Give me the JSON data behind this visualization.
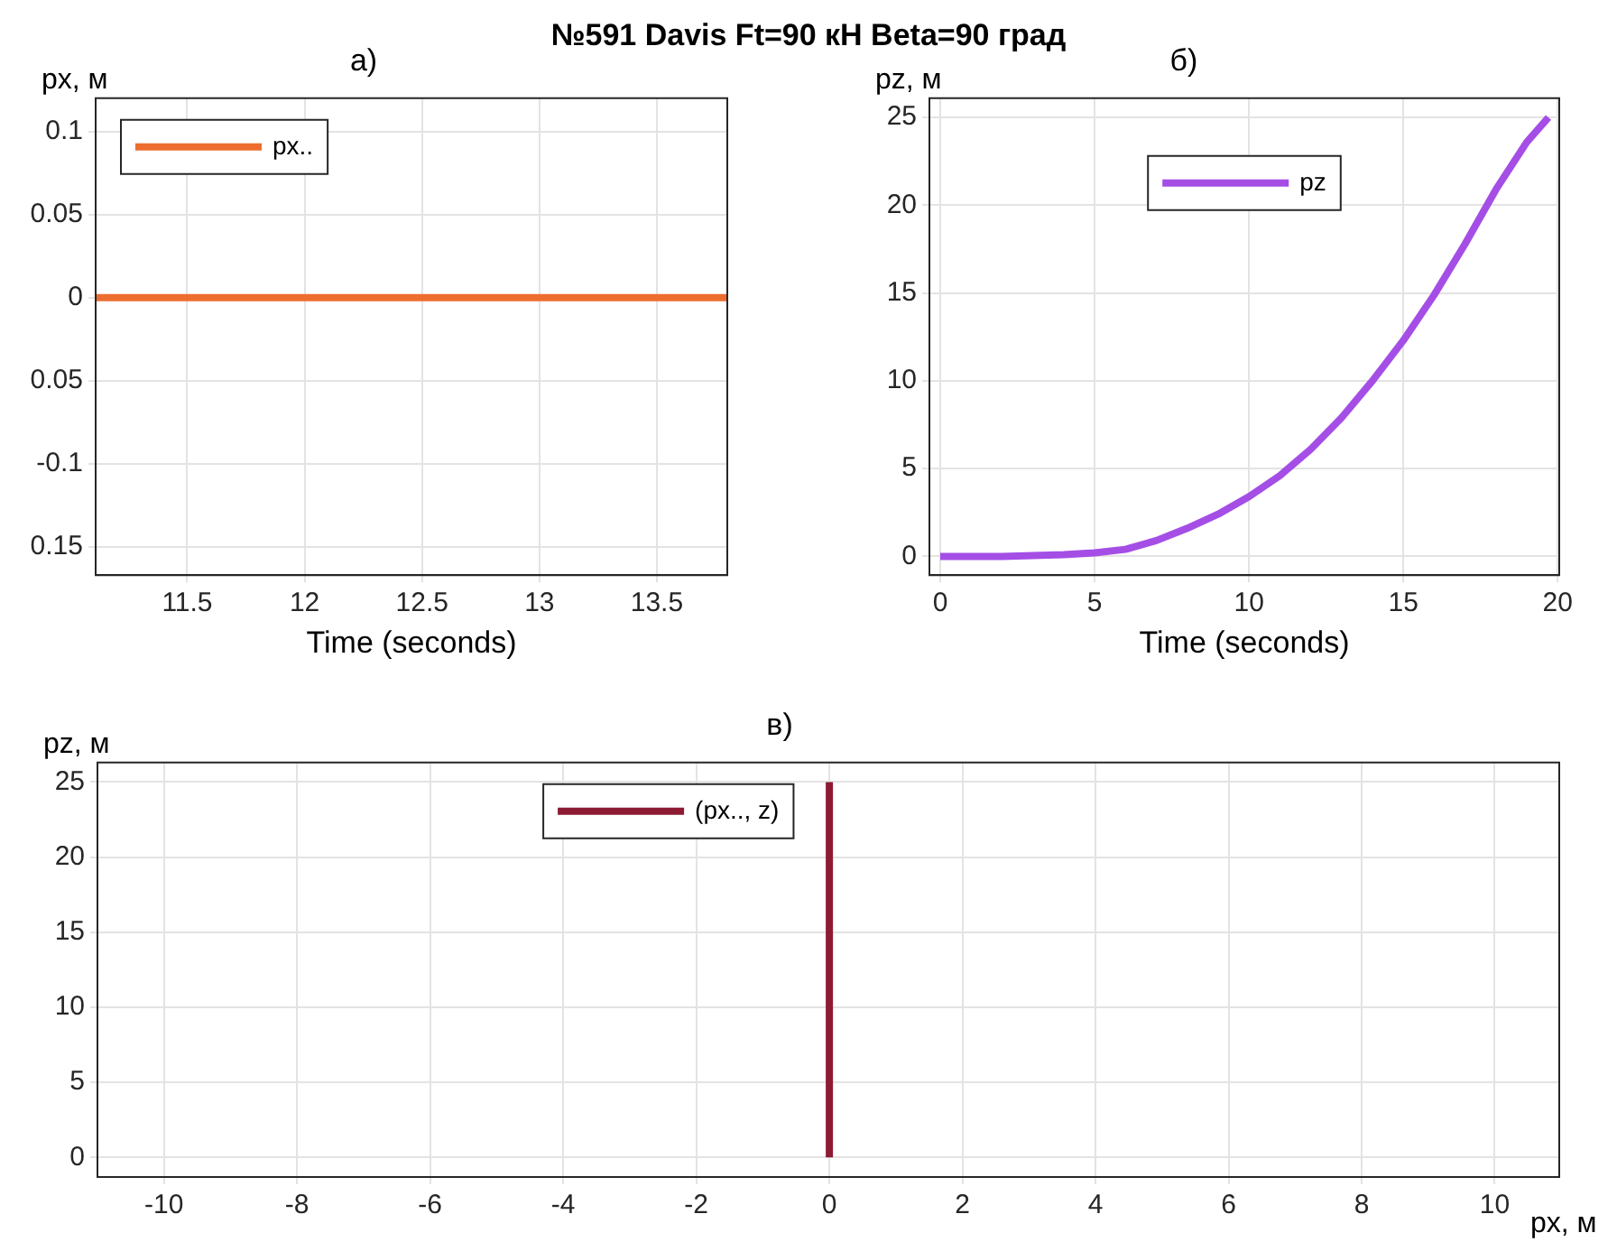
{
  "chart_data": [
    {
      "type": "line",
      "title": "a)",
      "annotations": [
        "№591 Davis Ft=90 кН Beta=90 град"
      ],
      "xlabel": "Time (seconds)",
      "ylabel": "px, м",
      "xlim": [
        11.11,
        13.8
      ],
      "xticks": [
        11.5,
        12,
        12.5,
        13,
        13.5
      ],
      "ylim": [
        -0.167,
        0.12
      ],
      "yticks": [
        {
          "value": -0.15,
          "label": "0.15"
        },
        -0.1,
        {
          "value": -0.05,
          "label": "0.05"
        },
        0,
        0.05,
        0.1
      ],
      "grid": true,
      "legend": "top left",
      "series": [
        {
          "name": "px..",
          "color": "#ed6d2f",
          "x": [
            11.11,
            13.8
          ],
          "values": [
            0,
            0
          ]
        }
      ]
    },
    {
      "type": "line",
      "title": "б)",
      "xlabel": "Time (seconds)",
      "ylabel": "pz, м",
      "xlim": [
        -0.35,
        20.05
      ],
      "xticks": [
        0,
        5,
        10,
        15,
        20
      ],
      "ylim": [
        -1.07,
        26.1
      ],
      "yticks": [
        0,
        5,
        10,
        15,
        20,
        25
      ],
      "grid": true,
      "legend": "top",
      "series": [
        {
          "name": "pz",
          "color": "#a54ee6",
          "x": [
            0,
            2,
            4,
            5,
            6,
            7,
            8,
            9,
            10,
            11,
            12,
            13,
            14,
            15,
            16,
            17,
            18,
            19,
            19.7
          ],
          "values": [
            0,
            0,
            0.1,
            0.2,
            0.4,
            0.9,
            1.6,
            2.4,
            3.4,
            4.6,
            6.1,
            7.9,
            10,
            12.3,
            14.9,
            17.8,
            20.9,
            23.6,
            25
          ]
        }
      ]
    },
    {
      "type": "line",
      "title": "в)",
      "xlabel": "px, м",
      "ylabel": "pz, м",
      "xlim": [
        -11,
        10.97
      ],
      "xticks": [
        -10,
        -8,
        -6,
        -4,
        -2,
        0,
        2,
        4,
        6,
        8,
        10
      ],
      "ylim": [
        -1.3,
        26.3
      ],
      "yticks": [
        0,
        5,
        10,
        15,
        20,
        25
      ],
      "grid": true,
      "legend": "top left",
      "series": [
        {
          "name": "(px.., z)",
          "color": "#8c1b33",
          "x": [
            0,
            0
          ],
          "values": [
            0,
            25
          ]
        }
      ]
    }
  ]
}
